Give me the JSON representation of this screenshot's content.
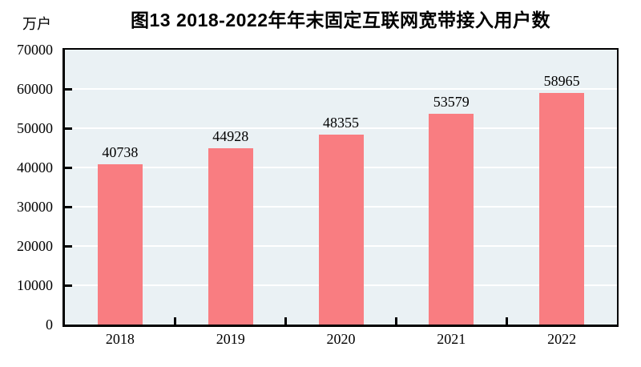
{
  "chart_data": {
    "type": "bar",
    "title": "图13  2018-2022年年末固定互联网宽带接入用户数",
    "unit_label": "万户",
    "categories": [
      "2018",
      "2019",
      "2020",
      "2021",
      "2022"
    ],
    "values": [
      40738,
      44928,
      48355,
      53579,
      58965
    ],
    "value_labels": [
      "40738",
      "44928",
      "48355",
      "53579",
      "58965"
    ],
    "ylim": [
      0,
      70000
    ],
    "ytick_interval": 10000,
    "ytick_labels": [
      "0",
      "10000",
      "20000",
      "30000",
      "40000",
      "50000",
      "60000",
      "70000"
    ],
    "grid": "horizontal-only",
    "legend_position": "none",
    "colors": {
      "bar_fill": "#f97d81",
      "plot_background": "#eaf1f4",
      "gridline": "#ffffff",
      "axis": "#000000",
      "text": "#000000",
      "page_background": "#ffffff"
    }
  }
}
